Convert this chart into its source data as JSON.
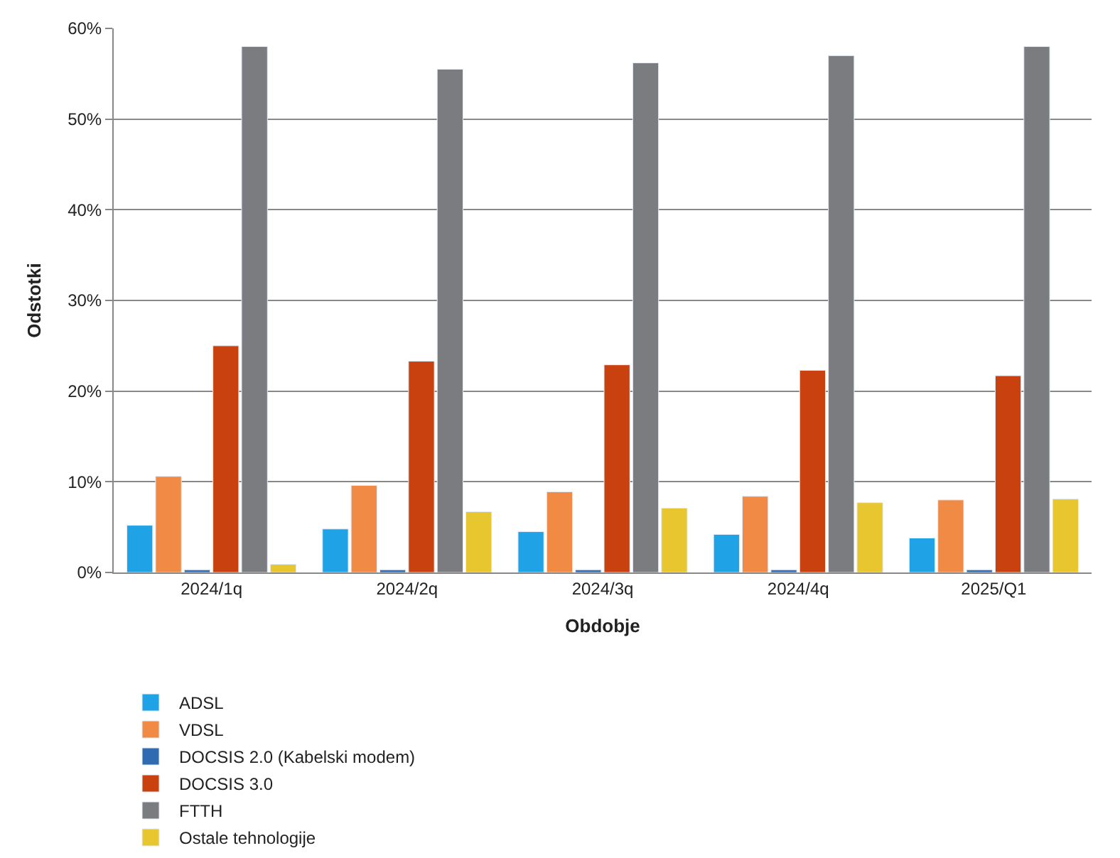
{
  "chart_data": {
    "type": "bar",
    "xlabel": "Obdobje",
    "ylabel": "Odstotki",
    "categories": [
      "2024/1q",
      "2024/2q",
      "2024/3q",
      "2024/4q",
      "2025/Q1"
    ],
    "series": [
      {
        "name": "ADSL",
        "color": "#1fa3e6",
        "values": [
          5.2,
          4.8,
          4.5,
          4.2,
          3.8
        ]
      },
      {
        "name": "VDSL",
        "color": "#f08a45",
        "values": [
          10.6,
          9.6,
          8.9,
          8.4,
          8.0
        ]
      },
      {
        "name": "DOCSIS 2.0 (Kabelski modem)",
        "color": "#2f6bb0",
        "values": [
          0.3,
          0.3,
          0.3,
          0.3,
          0.3
        ]
      },
      {
        "name": "DOCSIS 3.0",
        "color": "#c8410f",
        "values": [
          25.0,
          23.3,
          22.9,
          22.3,
          21.7
        ]
      },
      {
        "name": "FTTH",
        "color": "#7a7c80",
        "values": [
          58.0,
          55.5,
          56.2,
          57.0,
          58.0
        ]
      },
      {
        "name": "Ostale tehnologije",
        "color": "#e8c630",
        "values": [
          0.9,
          6.7,
          7.1,
          7.7,
          8.1
        ]
      }
    ],
    "ylim": [
      0,
      60
    ],
    "yticks": [
      {
        "value": 0,
        "label": "0%"
      },
      {
        "value": 10,
        "label": "10%"
      },
      {
        "value": 20,
        "label": "20%"
      },
      {
        "value": 30,
        "label": "30%"
      },
      {
        "value": 40,
        "label": "40%"
      },
      {
        "value": 50,
        "label": "50%"
      },
      {
        "value": 60,
        "label": "60%"
      }
    ],
    "grid": "y",
    "legend": "bottom"
  }
}
